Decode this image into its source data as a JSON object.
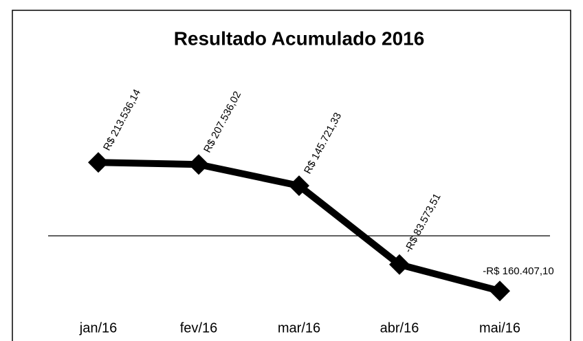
{
  "chart_data": {
    "type": "line",
    "title": "Resultado Acumulado 2016",
    "categories": [
      "jan/16",
      "fev/16",
      "mar/16",
      "abr/16",
      "mai/16"
    ],
    "series": [
      {
        "name": "Resultado Acumulado",
        "color": "#000000",
        "values": [
          213536.14,
          207536.02,
          145721.33,
          -83573.51,
          -160407.1
        ],
        "value_labels": [
          "R$ 213.536,14",
          "R$ 207.536,02",
          "R$ 145.721,33",
          "-R$ 83.573,51",
          "-R$ 160.407,10"
        ]
      }
    ],
    "ylim": [
      -200000,
      500000
    ]
  }
}
